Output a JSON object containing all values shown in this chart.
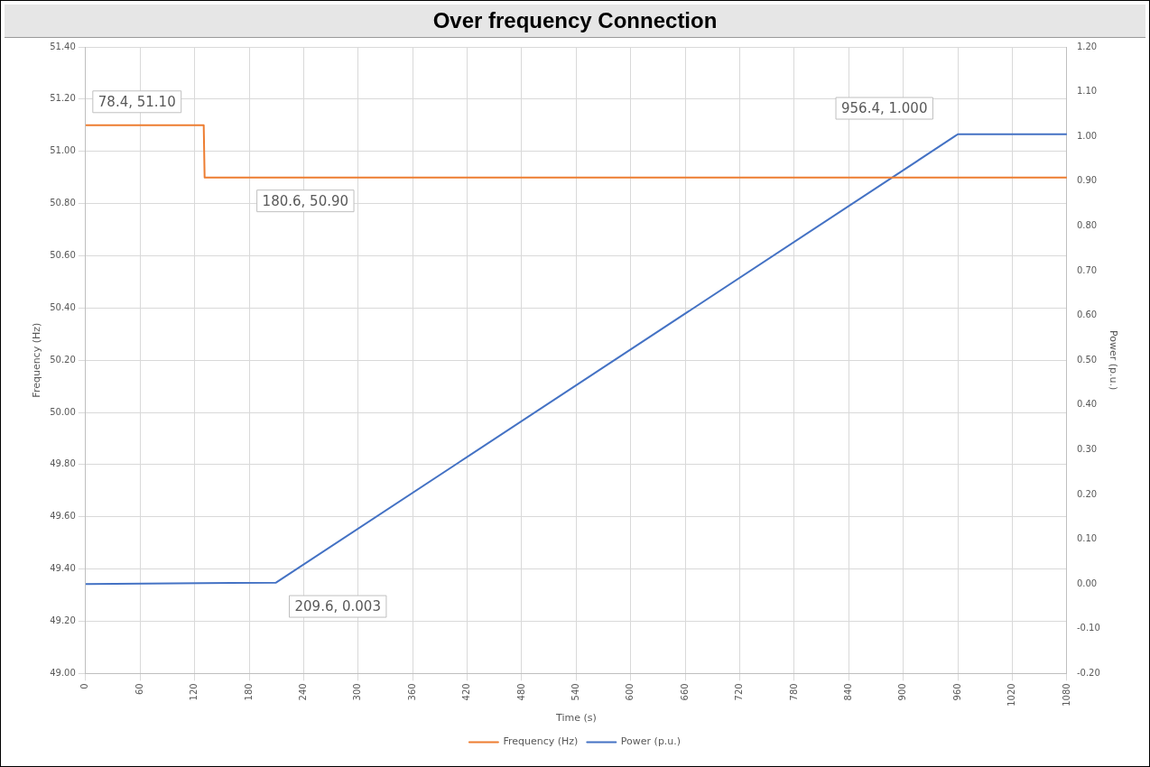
{
  "chart_data": {
    "type": "line",
    "title": "Over frequency Connection",
    "xlabel": "Time (s)",
    "ylabel": "Frequency (Hz)",
    "y2label": "Power (p.u.)",
    "series": [
      {
        "name": "Frequency (Hz)",
        "color": "#ed7d31",
        "x": [
          0,
          130,
          131,
          1080
        ],
        "values": [
          51.1,
          51.1,
          50.9,
          50.9
        ]
      },
      {
        "name": "Power (p.u.)",
        "color": "#4472c4",
        "axis": "y2",
        "x": [
          0,
          209.6,
          956.4,
          960,
          1080
        ],
        "values": [
          0,
          0.003,
          1.0,
          1.005,
          1.005
        ]
      }
    ],
    "xlim": [
      0,
      1080
    ],
    "xticks": [
      0,
      60,
      120,
      180,
      240,
      300,
      360,
      420,
      480,
      540,
      600,
      660,
      720,
      780,
      840,
      900,
      960,
      1020,
      1080
    ],
    "ylim": [
      49.0,
      51.4
    ],
    "yticks": [
      {
        "value": 49.0,
        "label": "49.00"
      },
      {
        "value": 49.2,
        "label": "49.20"
      },
      {
        "value": 49.4,
        "label": "49.40"
      },
      {
        "value": 49.6,
        "label": "49.60"
      },
      {
        "value": 49.8,
        "label": "49.80"
      },
      {
        "value": 50.0,
        "label": "50.00"
      },
      {
        "value": 50.2,
        "label": "50.20"
      },
      {
        "value": 50.4,
        "label": "50.40"
      },
      {
        "value": 50.6,
        "label": "50.60"
      },
      {
        "value": 50.8,
        "label": "50.80"
      },
      {
        "value": 51.0,
        "label": "51.00"
      },
      {
        "value": 51.2,
        "label": "51.20"
      },
      {
        "value": 51.4,
        "label": "51.40"
      }
    ],
    "y2lim": [
      -0.2,
      1.2
    ],
    "y2ticks": [
      {
        "value": -0.2,
        "label": "-0.20"
      },
      {
        "value": -0.1,
        "label": "-0.10"
      },
      {
        "value": 0,
        "label": "0.00"
      },
      {
        "value": 0.1,
        "label": "0.10"
      },
      {
        "value": 0.2,
        "label": "0.20"
      },
      {
        "value": 0.3,
        "label": "0.30"
      },
      {
        "value": 0.4,
        "label": "0.40"
      },
      {
        "value": 0.5,
        "label": "0.50"
      },
      {
        "value": 0.6,
        "label": "0.60"
      },
      {
        "value": 0.7,
        "label": "0.70"
      },
      {
        "value": 0.8,
        "label": "0.80"
      },
      {
        "value": 0.9,
        "label": "0.90"
      },
      {
        "value": 1.0,
        "label": "1.00"
      },
      {
        "value": 1.1,
        "label": "1.10"
      },
      {
        "value": 1.2,
        "label": "1.20"
      }
    ],
    "annotations": [
      {
        "text": "78.4, 51.10",
        "x": 78.4,
        "y": 51.1
      },
      {
        "text": "180.6, 50.90",
        "x": 180.6,
        "y": 50.9
      },
      "956.4, 1.000",
      "209.6, 0.003"
    ],
    "grid": true,
    "legend": "bottom",
    "marker": "none",
    "line_style": "solid"
  }
}
